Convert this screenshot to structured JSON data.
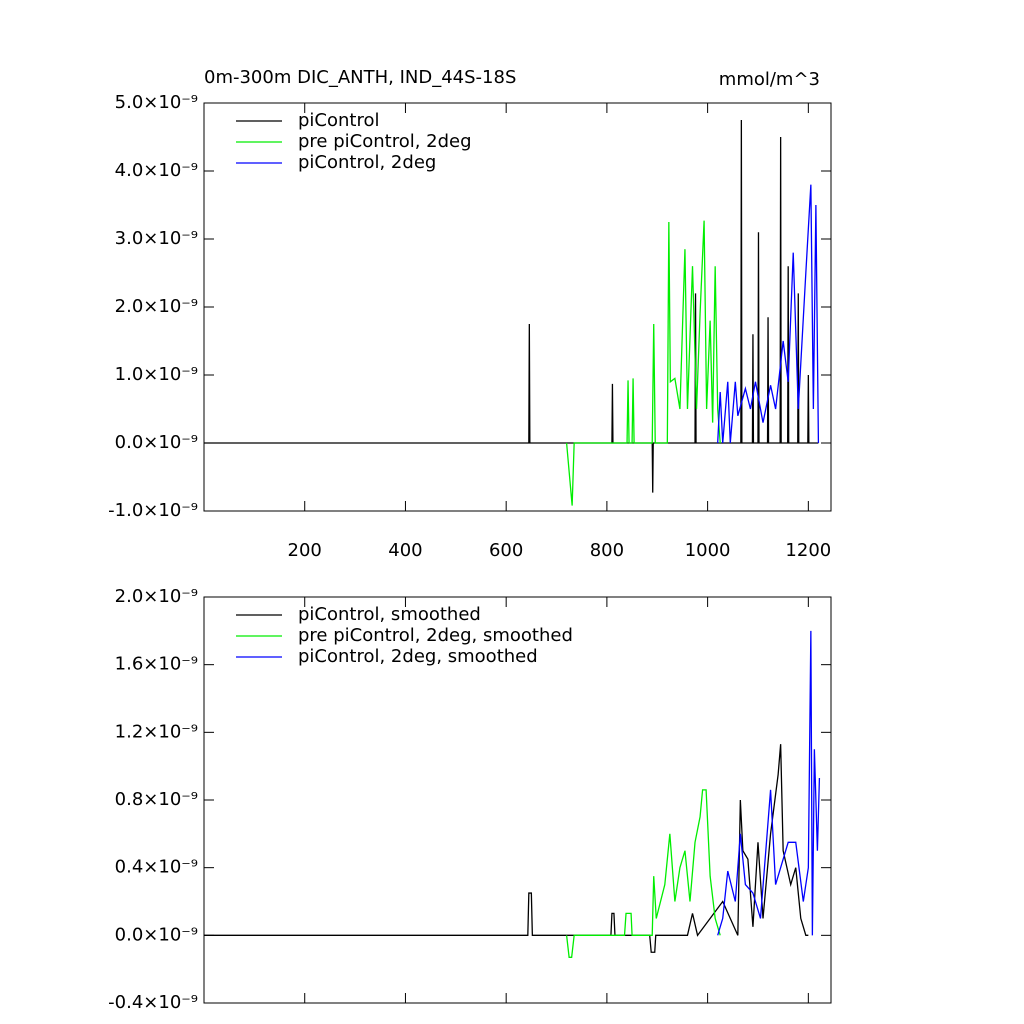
{
  "chart_data": [
    {
      "type": "line",
      "title": "0m-300m DIC_ANTH, IND_44S-18S",
      "units_label": "mmol/m^3",
      "xlim": [
        0,
        1245
      ],
      "xticks": [
        200,
        400,
        600,
        800,
        1000,
        1200
      ],
      "xtick_labels": true,
      "ylim": [
        -1e-09,
        5e-09
      ],
      "yticks": [
        {
          "value": -1e-09,
          "label": "-1.0×10⁻⁹"
        },
        {
          "value": 0,
          "label": "0.0×10⁻⁹"
        },
        {
          "value": 1e-09,
          "label": "1.0×10⁻⁹"
        },
        {
          "value": 2e-09,
          "label": "2.0×10⁻⁹"
        },
        {
          "value": 3e-09,
          "label": "3.0×10⁻⁹"
        },
        {
          "value": 4e-09,
          "label": "4.0×10⁻⁹"
        },
        {
          "value": 5e-09,
          "label": "5.0×10⁻⁹"
        }
      ],
      "series": [
        {
          "name": "piControl",
          "color": "#000000",
          "x": [
            1,
            645,
            646,
            647,
            810,
            811,
            812,
            890,
            891,
            892,
            975,
            976,
            977,
            1066,
            1067,
            1068,
            1089,
            1090,
            1091,
            1100,
            1101,
            1102,
            1119,
            1120,
            1121,
            1144,
            1145,
            1146,
            1159,
            1160,
            1161,
            1179,
            1180,
            1181,
            1199,
            1200,
            1201,
            1220
          ],
          "values": [
            0,
            0,
            1.75e-09,
            0,
            0,
            8.7e-10,
            0,
            0,
            -7.3e-10,
            0,
            0,
            2.2e-09,
            0,
            0,
            4.75e-09,
            0,
            0,
            1.6e-09,
            0,
            0,
            3.1e-09,
            0,
            0,
            1.85e-09,
            0,
            0,
            4.5e-09,
            0,
            0,
            2.6e-09,
            0,
            0,
            2.2e-09,
            0,
            0,
            1e-09,
            0,
            0
          ]
        },
        {
          "name": "pre piControl, 2deg",
          "color": "#00ee00",
          "x": [
            720,
            731,
            735,
            840,
            842,
            844,
            850,
            852,
            854,
            890,
            893,
            896,
            920,
            923,
            926,
            935,
            945,
            955,
            960,
            970,
            978,
            985,
            993,
            998,
            1005,
            1010,
            1015,
            1020,
            1025
          ],
          "values": [
            0,
            -9.2e-10,
            0,
            0,
            9.2e-10,
            0,
            0,
            9.5e-10,
            0,
            0,
            1.75e-09,
            0,
            0,
            3.25e-09,
            9e-10,
            9.5e-10,
            5e-10,
            2.85e-09,
            5e-10,
            2.6e-09,
            5e-10,
            1.9e-09,
            3.27e-09,
            5e-10,
            1.8e-09,
            3e-10,
            2.6e-09,
            5e-10,
            0
          ]
        },
        {
          "name": "piControl, 2deg",
          "color": "#0000ff",
          "x": [
            1020,
            1025,
            1030,
            1040,
            1045,
            1055,
            1060,
            1075,
            1085,
            1095,
            1110,
            1125,
            1135,
            1150,
            1160,
            1170,
            1180,
            1195,
            1205,
            1210,
            1215,
            1220
          ],
          "values": [
            0,
            7.5e-10,
            0,
            9e-10,
            0,
            9e-10,
            4e-10,
            8e-10,
            5e-10,
            9e-10,
            3e-10,
            8.5e-10,
            5e-10,
            1.5e-09,
            9e-10,
            2.8e-09,
            5e-10,
            2.5e-09,
            3.8e-09,
            5e-10,
            3.5e-09,
            0
          ]
        }
      ]
    },
    {
      "type": "line",
      "xlim": [
        0,
        1245
      ],
      "xticks": [
        200,
        400,
        600,
        800,
        1000,
        1200
      ],
      "xtick_labels": false,
      "ylim": [
        -4e-10,
        2e-09
      ],
      "yticks": [
        {
          "value": -4e-10,
          "label": "-0.4×10⁻⁹"
        },
        {
          "value": 0,
          "label": "0.0×10⁻⁹"
        },
        {
          "value": 4e-10,
          "label": "0.4×10⁻⁹"
        },
        {
          "value": 8e-10,
          "label": "0.8×10⁻⁹"
        },
        {
          "value": 1.2e-09,
          "label": "1.2×10⁻⁹"
        },
        {
          "value": 1.6e-09,
          "label": "1.6×10⁻⁹"
        },
        {
          "value": 2e-09,
          "label": "2.0×10⁻⁹"
        }
      ],
      "series": [
        {
          "name": "piControl, smoothed",
          "color": "#000000",
          "x": [
            1,
            643,
            645,
            650,
            652,
            808,
            810,
            814,
            816,
            885,
            888,
            895,
            897,
            960,
            970,
            980,
            1030,
            1060,
            1065,
            1070,
            1080,
            1090,
            1100,
            1110,
            1125,
            1140,
            1145,
            1150,
            1165,
            1175,
            1185,
            1195,
            1200
          ],
          "values": [
            0,
            0,
            2.5e-10,
            2.5e-10,
            0,
            0,
            1.3e-10,
            1.3e-10,
            0,
            0,
            -1e-10,
            -1e-10,
            0,
            0,
            1.3e-10,
            0,
            2e-10,
            0,
            8e-10,
            5e-10,
            4.5e-10,
            5e-11,
            5.5e-10,
            1e-10,
            6e-10,
            9.5e-10,
            1.13e-09,
            5e-10,
            3e-10,
            4e-10,
            1e-10,
            0,
            0
          ]
        },
        {
          "name": "pre piControl, 2deg, smoothed",
          "color": "#00ee00",
          "x": [
            720,
            725,
            730,
            735,
            835,
            838,
            848,
            850,
            890,
            893,
            898,
            915,
            925,
            935,
            945,
            955,
            965,
            975,
            985,
            990,
            997,
            1005,
            1015,
            1025
          ],
          "values": [
            0,
            -1.3e-10,
            -1.3e-10,
            0,
            0,
            1.3e-10,
            1.3e-10,
            0,
            0,
            3.5e-10,
            1e-10,
            3e-10,
            6e-10,
            2e-10,
            4e-10,
            5e-10,
            2e-10,
            5.5e-10,
            7e-10,
            8.6e-10,
            8.6e-10,
            3.5e-10,
            1e-10,
            0
          ]
        },
        {
          "name": "piControl, 2deg, smoothed",
          "color": "#0000ff",
          "x": [
            1020,
            1030,
            1040,
            1055,
            1065,
            1075,
            1090,
            1105,
            1125,
            1135,
            1160,
            1175,
            1190,
            1200,
            1205,
            1208,
            1212,
            1218,
            1222
          ],
          "values": [
            0,
            1e-10,
            3.8e-10,
            2e-10,
            6e-10,
            3e-10,
            2.5e-10,
            1e-10,
            8.6e-10,
            3e-10,
            5.5e-10,
            5.5e-10,
            2e-10,
            4e-10,
            1.8e-09,
            0,
            1.1e-09,
            5e-10,
            9.3e-10
          ]
        }
      ]
    }
  ]
}
